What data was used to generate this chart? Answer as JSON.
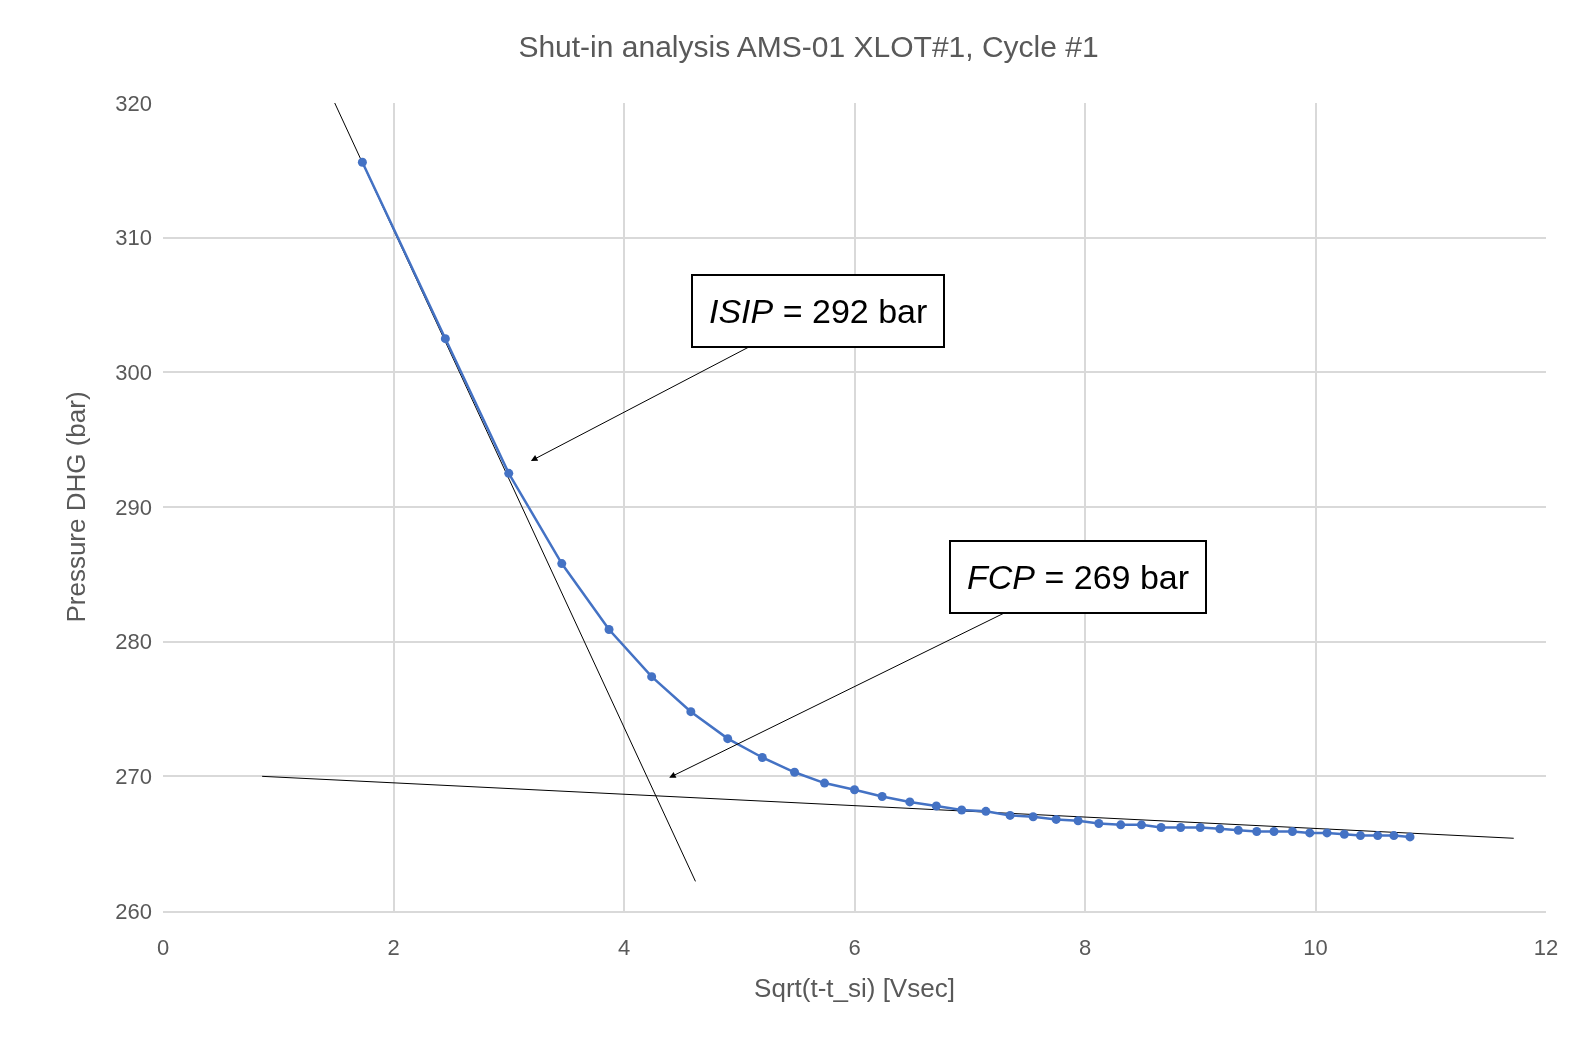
{
  "chart_data": {
    "type": "line",
    "title": "Shut-in analysis AMS-01 XLOT#1, Cycle #1",
    "xlabel": "Sqrt(t-t_si) [Vsec]",
    "ylabel": "Pressure DHG (bar)",
    "x": [
      1.73,
      2.45,
      3.0,
      3.46,
      3.87,
      4.24,
      4.58,
      4.9,
      5.2,
      5.48,
      5.74,
      6.0,
      6.24,
      6.48,
      6.71,
      6.93,
      7.14,
      7.35,
      7.55,
      7.75,
      7.94,
      8.12,
      8.31,
      8.49,
      8.66,
      8.83,
      9.0,
      9.17,
      9.33,
      9.49,
      9.64,
      9.8,
      9.95,
      10.1,
      10.25,
      10.39,
      10.54,
      10.68,
      10.82
    ],
    "series": [
      {
        "color": "#4472c4",
        "values": [
          315.6,
          302.5,
          292.5,
          285.8,
          280.9,
          277.4,
          274.8,
          272.8,
          271.4,
          270.3,
          269.5,
          269.0,
          268.5,
          268.1,
          267.8,
          267.5,
          267.4,
          267.1,
          267.0,
          266.8,
          266.7,
          266.5,
          266.4,
          266.4,
          266.2,
          266.2,
          266.2,
          266.1,
          266.0,
          265.9,
          265.9,
          265.9,
          265.8,
          265.8,
          265.7,
          265.6,
          265.6,
          265.6,
          265.5
        ]
      },
      {
        "type": "line",
        "color": "#000000",
        "marker": "none",
        "x": [
          1.49,
          4.62
        ],
        "values": [
          320,
          262.2
        ]
      },
      {
        "type": "line",
        "color": "#000000",
        "marker": "none",
        "x": [
          0.86,
          11.72
        ],
        "values": [
          270.0,
          265.4
        ]
      }
    ],
    "annotations": [
      "ISIP = 292 bar",
      "FCP = 269 bar"
    ],
    "xlim": [
      0,
      12
    ],
    "xticks": [
      0,
      2,
      4,
      6,
      8,
      10,
      12
    ],
    "ylim": [
      260,
      320
    ],
    "yticks": [
      260,
      270,
      280,
      290,
      300,
      310,
      320
    ],
    "grid": true,
    "marker": "circle",
    "line_style": "solid"
  }
}
